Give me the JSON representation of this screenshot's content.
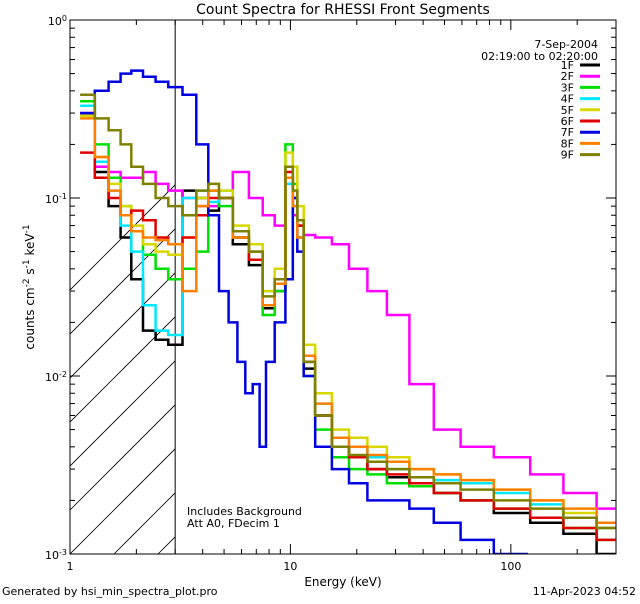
{
  "chart_data": {
    "type": "line",
    "title": "Count Spectra for RHESSI Front Segments",
    "xlabel": "Energy (keV)",
    "ylabel": "counts cm-2 s-1 keV-1",
    "xscale": "log",
    "yscale": "log",
    "xlim": [
      1,
      300
    ],
    "ylim": [
      0.001,
      1
    ],
    "x_ticks": [
      {
        "value": 1,
        "label": "1"
      },
      {
        "value": 10,
        "label": "10"
      },
      {
        "value": 100,
        "label": "100"
      }
    ],
    "y_ticks": [
      {
        "value": 0.001,
        "base": "10",
        "exp": "-3"
      },
      {
        "value": 0.01,
        "base": "10",
        "exp": "-2"
      },
      {
        "value": 0.1,
        "base": "10",
        "exp": "-1"
      },
      {
        "value": 1,
        "base": "10",
        "exp": "0"
      }
    ],
    "hatched_region_keV": [
      1,
      3
    ],
    "annotations": {
      "date": "7-Sep-2004",
      "time_range": "02:19:00 to 02:20:00",
      "note1": "Includes Background",
      "note2": "Att A0, FDecim 1"
    },
    "footer_left": "Generated by hsi_min_spectra_plot.pro",
    "footer_right": "11-Apr-2023 04:52",
    "series": [
      {
        "name": "1F",
        "color": "#000000",
        "x": [
          1.2,
          1.4,
          1.6,
          1.8,
          2.0,
          2.3,
          2.6,
          3.0,
          3.5,
          4.0,
          4.5,
          5.0,
          6.0,
          7.0,
          8.0,
          9.0,
          10.0,
          10.5,
          11.0,
          12.0,
          14.0,
          17.0,
          20.0,
          25.0,
          30.0,
          40.0,
          50.0,
          70.0,
          100.0,
          150.0,
          200.0,
          300.0
        ],
        "y": [
          0.3,
          0.14,
          0.09,
          0.06,
          0.035,
          0.018,
          0.016,
          0.015,
          0.11,
          0.1,
          0.085,
          0.1,
          0.055,
          0.042,
          0.024,
          0.03,
          0.13,
          0.08,
          0.06,
          0.011,
          0.006,
          0.004,
          0.0035,
          0.003,
          0.0027,
          0.0024,
          0.0022,
          0.002,
          0.0017,
          0.0015,
          0.0013,
          0.001
        ]
      },
      {
        "name": "2F",
        "color": "#ff00ff",
        "x": [
          1.2,
          1.4,
          1.6,
          1.8,
          2.0,
          2.3,
          2.6,
          3.0,
          3.5,
          4.0,
          4.5,
          5.0,
          6.0,
          7.0,
          8.0,
          9.0,
          10.0,
          10.5,
          11.0,
          12.0,
          14.0,
          17.0,
          20.0,
          25.0,
          30.0,
          40.0,
          50.0,
          70.0,
          100.0,
          150.0,
          200.0,
          300.0
        ],
        "y": [
          0.3,
          0.15,
          0.14,
          0.13,
          0.13,
          0.14,
          0.12,
          0.11,
          0.1,
          0.09,
          0.09,
          0.1,
          0.14,
          0.1,
          0.08,
          0.07,
          0.12,
          0.08,
          0.07,
          0.062,
          0.06,
          0.055,
          0.04,
          0.03,
          0.022,
          0.009,
          0.005,
          0.004,
          0.0035,
          0.0028,
          0.0022,
          0.0018
        ]
      },
      {
        "name": "3F",
        "color": "#00e000",
        "x": [
          1.2,
          1.4,
          1.6,
          1.8,
          2.0,
          2.3,
          2.6,
          3.0,
          3.5,
          4.0,
          4.5,
          5.0,
          6.0,
          7.0,
          8.0,
          9.0,
          10.0,
          10.5,
          11.0,
          12.0,
          14.0,
          17.0,
          20.0,
          25.0,
          30.0,
          40.0,
          50.0,
          70.0,
          100.0,
          150.0,
          200.0,
          300.0
        ],
        "y": [
          0.35,
          0.2,
          0.13,
          0.09,
          0.065,
          0.048,
          0.04,
          0.035,
          0.04,
          0.05,
          0.11,
          0.09,
          0.06,
          0.045,
          0.022,
          0.03,
          0.2,
          0.12,
          0.07,
          0.01,
          0.005,
          0.0035,
          0.003,
          0.0028,
          0.0025,
          0.0024,
          0.0022,
          0.002,
          0.0018,
          0.0016,
          0.0014,
          0.0012
        ]
      },
      {
        "name": "4F",
        "color": "#00e8ff",
        "x": [
          1.2,
          1.4,
          1.6,
          1.8,
          2.0,
          2.3,
          2.6,
          3.0,
          3.5,
          4.0,
          4.5,
          5.0,
          6.0,
          7.0,
          8.0,
          9.0,
          10.0,
          10.5,
          11.0,
          12.0,
          14.0,
          17.0,
          20.0,
          25.0,
          30.0,
          40.0,
          50.0,
          70.0,
          100.0,
          150.0,
          200.0,
          300.0
        ],
        "y": [
          0.33,
          0.16,
          0.11,
          0.07,
          0.05,
          0.025,
          0.018,
          0.017,
          0.1,
          0.11,
          0.095,
          0.11,
          0.06,
          0.05,
          0.03,
          0.035,
          0.12,
          0.09,
          0.06,
          0.012,
          0.007,
          0.0045,
          0.004,
          0.0035,
          0.003,
          0.0027,
          0.0026,
          0.0025,
          0.0022,
          0.0019,
          0.0016,
          0.0014
        ]
      },
      {
        "name": "5F",
        "color": "#d8d800",
        "x": [
          1.2,
          1.4,
          1.6,
          1.8,
          2.0,
          2.3,
          2.6,
          3.0,
          3.5,
          4.0,
          4.5,
          5.0,
          6.0,
          7.0,
          8.0,
          9.0,
          10.0,
          10.5,
          11.0,
          12.0,
          14.0,
          17.0,
          20.0,
          25.0,
          30.0,
          40.0,
          50.0,
          70.0,
          100.0,
          150.0,
          200.0,
          300.0
        ],
        "y": [
          0.29,
          0.17,
          0.12,
          0.09,
          0.07,
          0.055,
          0.05,
          0.048,
          0.06,
          0.1,
          0.12,
          0.11,
          0.07,
          0.055,
          0.03,
          0.04,
          0.18,
          0.15,
          0.09,
          0.015,
          0.008,
          0.005,
          0.0045,
          0.004,
          0.0035,
          0.003,
          0.0028,
          0.0026,
          0.0023,
          0.002,
          0.0017,
          0.0014
        ]
      },
      {
        "name": "6F",
        "color": "#e00000",
        "x": [
          1.2,
          1.4,
          1.6,
          1.8,
          2.0,
          2.3,
          2.6,
          3.0,
          3.5,
          4.0,
          4.5,
          5.0,
          6.0,
          7.0,
          8.0,
          9.0,
          10.0,
          10.5,
          11.0,
          12.0,
          14.0,
          17.0,
          20.0,
          25.0,
          30.0,
          40.0,
          50.0,
          70.0,
          100.0,
          150.0,
          200.0,
          300.0
        ],
        "y": [
          0.18,
          0.13,
          0.1,
          0.08,
          0.085,
          0.075,
          0.06,
          0.055,
          0.06,
          0.08,
          0.1,
          0.1,
          0.06,
          0.045,
          0.025,
          0.035,
          0.14,
          0.1,
          0.07,
          0.012,
          0.006,
          0.004,
          0.0035,
          0.003,
          0.0028,
          0.0025,
          0.0022,
          0.002,
          0.0018,
          0.0016,
          0.0014,
          0.0012
        ]
      },
      {
        "name": "7F",
        "color": "#0000e0",
        "x": [
          1.2,
          1.4,
          1.6,
          1.8,
          2.0,
          2.3,
          2.6,
          3.0,
          3.5,
          4.0,
          4.5,
          5.0,
          5.5,
          6.0,
          6.5,
          7.0,
          7.5,
          8.0,
          9.0,
          10.0,
          10.5,
          11.0,
          12.0,
          14.0,
          17.0,
          20.0,
          25.0,
          30.0,
          40.0,
          50.0,
          70.0,
          100.0
        ],
        "y": [
          0.3,
          0.4,
          0.45,
          0.5,
          0.52,
          0.48,
          0.45,
          0.42,
          0.38,
          0.2,
          0.08,
          0.03,
          0.02,
          0.012,
          0.008,
          0.009,
          0.004,
          0.012,
          0.02,
          0.035,
          0.1,
          0.05,
          0.01,
          0.004,
          0.003,
          0.0025,
          0.002,
          0.002,
          0.0018,
          0.0015,
          0.0012,
          0.001
        ]
      },
      {
        "name": "8F",
        "color": "#ff8000",
        "x": [
          1.2,
          1.4,
          1.6,
          1.8,
          2.0,
          2.3,
          2.6,
          3.0,
          3.5,
          4.0,
          4.5,
          5.0,
          6.0,
          7.0,
          8.0,
          9.0,
          10.0,
          10.5,
          11.0,
          12.0,
          14.0,
          17.0,
          20.0,
          25.0,
          30.0,
          40.0,
          50.0,
          70.0,
          100.0,
          150.0,
          200.0,
          300.0
        ],
        "y": [
          0.28,
          0.17,
          0.11,
          0.08,
          0.065,
          0.06,
          0.058,
          0.055,
          0.03,
          0.09,
          0.11,
          0.1,
          0.06,
          0.05,
          0.025,
          0.033,
          0.13,
          0.09,
          0.06,
          0.013,
          0.007,
          0.0045,
          0.004,
          0.0036,
          0.0033,
          0.003,
          0.0028,
          0.0026,
          0.0023,
          0.002,
          0.0018,
          0.0015
        ]
      },
      {
        "name": "9F",
        "color": "#808000",
        "x": [
          1.2,
          1.4,
          1.6,
          1.8,
          2.0,
          2.3,
          2.6,
          3.0,
          3.5,
          4.0,
          4.5,
          5.0,
          6.0,
          7.0,
          8.0,
          9.0,
          10.0,
          10.5,
          11.0,
          12.0,
          14.0,
          17.0,
          20.0,
          25.0,
          30.0,
          40.0,
          50.0,
          70.0,
          100.0,
          150.0,
          200.0,
          300.0
        ],
        "y": [
          0.38,
          0.28,
          0.24,
          0.2,
          0.15,
          0.12,
          0.1,
          0.09,
          0.08,
          0.11,
          0.12,
          0.1,
          0.065,
          0.05,
          0.028,
          0.035,
          0.15,
          0.11,
          0.075,
          0.012,
          0.006,
          0.004,
          0.0036,
          0.0033,
          0.003,
          0.0027,
          0.0025,
          0.0023,
          0.002,
          0.0018,
          0.0016,
          0.0014
        ]
      }
    ]
  }
}
